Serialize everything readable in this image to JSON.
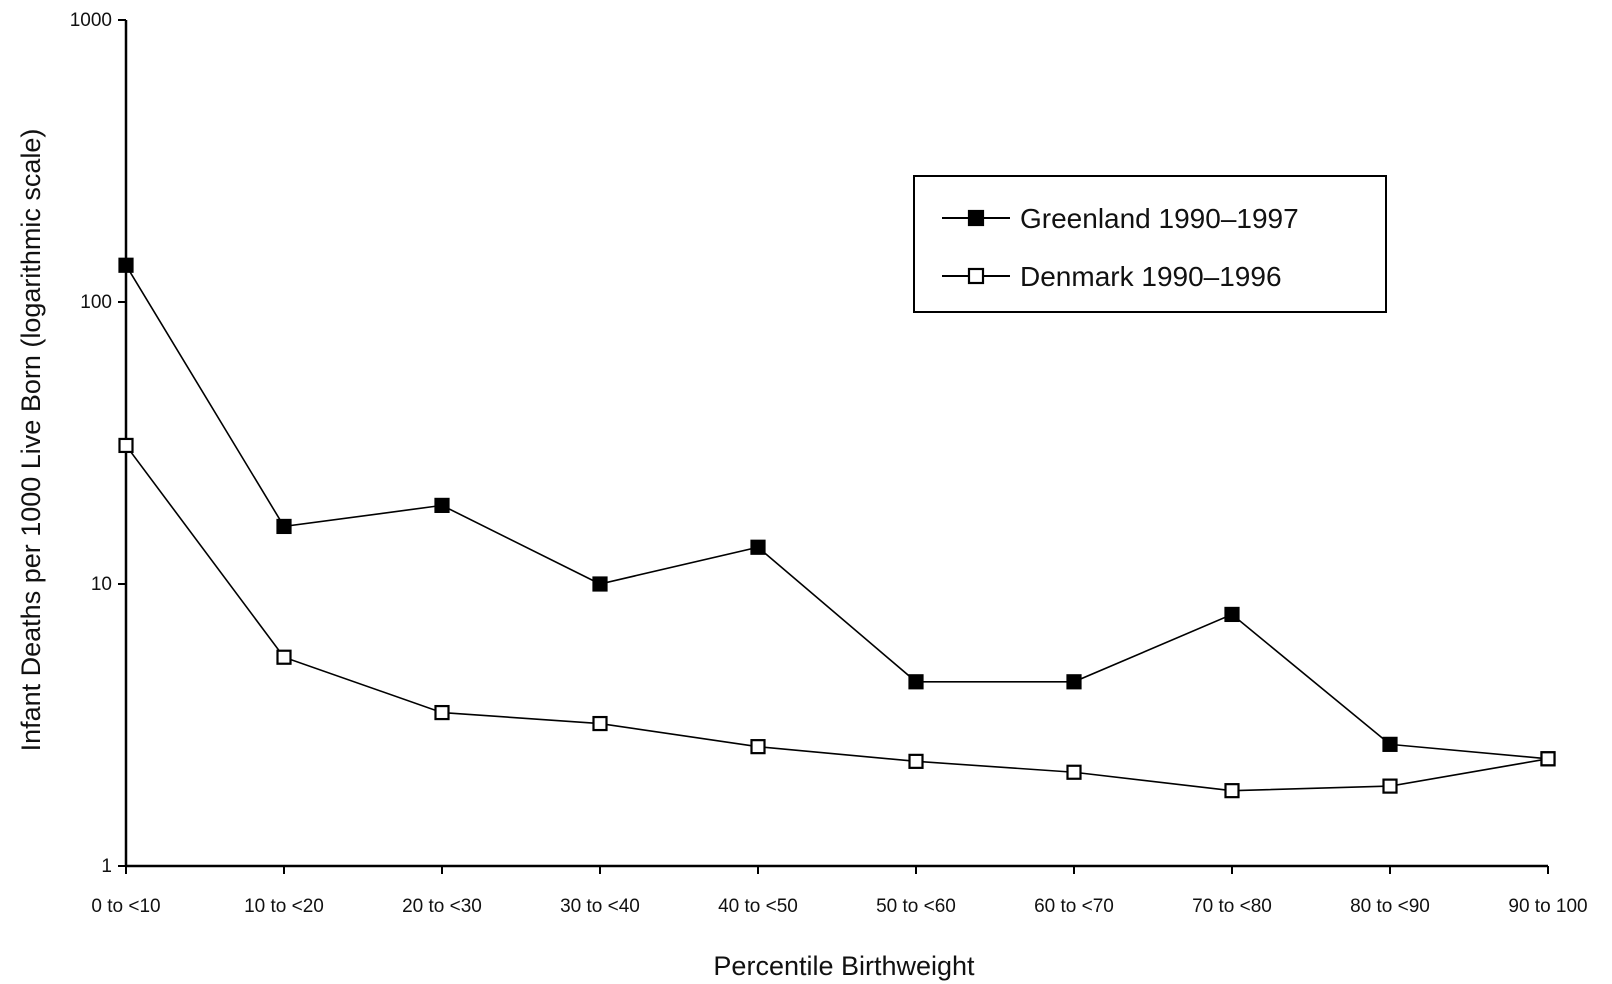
{
  "chart_data": {
    "type": "line",
    "title": "",
    "xlabel": "Percentile Birthweight",
    "ylabel": "Infant Deaths per 1000 Live Born (logarithmic scale)",
    "yscale": "log",
    "ylim": [
      1,
      1000
    ],
    "yticks": [
      "1",
      "10",
      "100",
      "1000"
    ],
    "categories": [
      "0 to <10",
      "10 to <20",
      "20 to <30",
      "30 to <40",
      "40 to <50",
      "50 to <60",
      "60 to <70",
      "70 to <80",
      "80 to <90",
      "90 to 100"
    ],
    "legend_position": "top-right",
    "grid": false,
    "series": [
      {
        "name": "Greenland 1990–1997",
        "marker": "filled-square",
        "color": "#000000",
        "values": [
          135,
          16,
          19,
          10,
          13.5,
          4.5,
          4.5,
          7.8,
          2.7,
          2.4
        ]
      },
      {
        "name": "Denmark 1990–1996",
        "marker": "open-square",
        "color": "#000000",
        "values": [
          31,
          5.5,
          3.5,
          3.2,
          2.65,
          2.35,
          2.15,
          1.85,
          1.92,
          2.4
        ]
      }
    ]
  }
}
